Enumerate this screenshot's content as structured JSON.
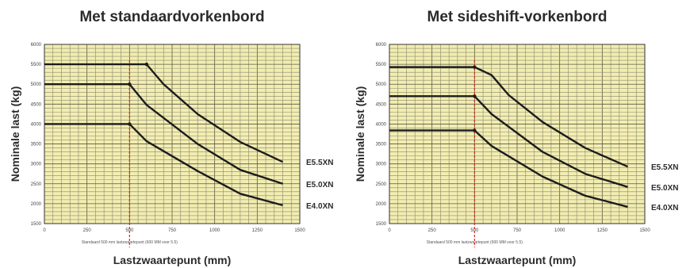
{
  "chart_data": [
    {
      "type": "line",
      "title": "Met standaardvorkenbord",
      "xlabel": "Lastzwaartepunt (mm)",
      "ylabel": "Nominale last (kg)",
      "note": "Standaard 500 mm lastzwaartepunt (600 MM voor 5.5)",
      "xlim": [
        0,
        1500
      ],
      "ylim": [
        1500,
        6000
      ],
      "xticks": [
        "0",
        "250",
        "500",
        "750",
        "1000",
        "1250",
        "1500"
      ],
      "yticks": [
        "1500",
        "2000",
        "2500",
        "3000",
        "3500",
        "4000",
        "4500",
        "5000",
        "5500",
        "6000"
      ],
      "grid": true,
      "reference_x": 500,
      "series": [
        {
          "name": "E5.5XN",
          "x": [
            0,
            600,
            700,
            900,
            1150,
            1400
          ],
          "y": [
            5500,
            5500,
            5000,
            4250,
            3550,
            3050
          ]
        },
        {
          "name": "E5.0XN",
          "x": [
            0,
            500,
            600,
            900,
            1150,
            1400
          ],
          "y": [
            5000,
            5000,
            4480,
            3500,
            2850,
            2500
          ]
        },
        {
          "name": "E4.0XN",
          "x": [
            0,
            500,
            600,
            900,
            1150,
            1400
          ],
          "y": [
            4000,
            4000,
            3570,
            2820,
            2250,
            1960
          ]
        }
      ]
    },
    {
      "type": "line",
      "title": "Met sideshift-vorkenbord",
      "xlabel": "Lastzwaartepunt (mm)",
      "ylabel": "Nominale last (kg)",
      "note": "Standaard 500 mm lastzwaartepunt (600 MM voor 5.5)",
      "xlim": [
        0,
        1500
      ],
      "ylim": [
        1500,
        6000
      ],
      "xticks": [
        "0",
        "250",
        "500",
        "750",
        "1000",
        "1250",
        "1500"
      ],
      "yticks": [
        "1500",
        "2000",
        "2500",
        "3000",
        "3500",
        "4000",
        "4500",
        "5000",
        "5500",
        "6000"
      ],
      "grid": true,
      "reference_x": 500,
      "series": [
        {
          "name": "E5.5XN",
          "x": [
            0,
            500,
            600,
            700,
            900,
            1150,
            1400
          ],
          "y": [
            5430,
            5430,
            5230,
            4730,
            4050,
            3400,
            2930
          ]
        },
        {
          "name": "E5.0XN",
          "x": [
            0,
            500,
            600,
            900,
            1150,
            1400
          ],
          "y": [
            4700,
            4700,
            4250,
            3300,
            2750,
            2420
          ]
        },
        {
          "name": "E4.0XN",
          "x": [
            0,
            500,
            600,
            900,
            1150,
            1400
          ],
          "y": [
            3840,
            3840,
            3450,
            2680,
            2200,
            1920
          ]
        }
      ]
    }
  ]
}
